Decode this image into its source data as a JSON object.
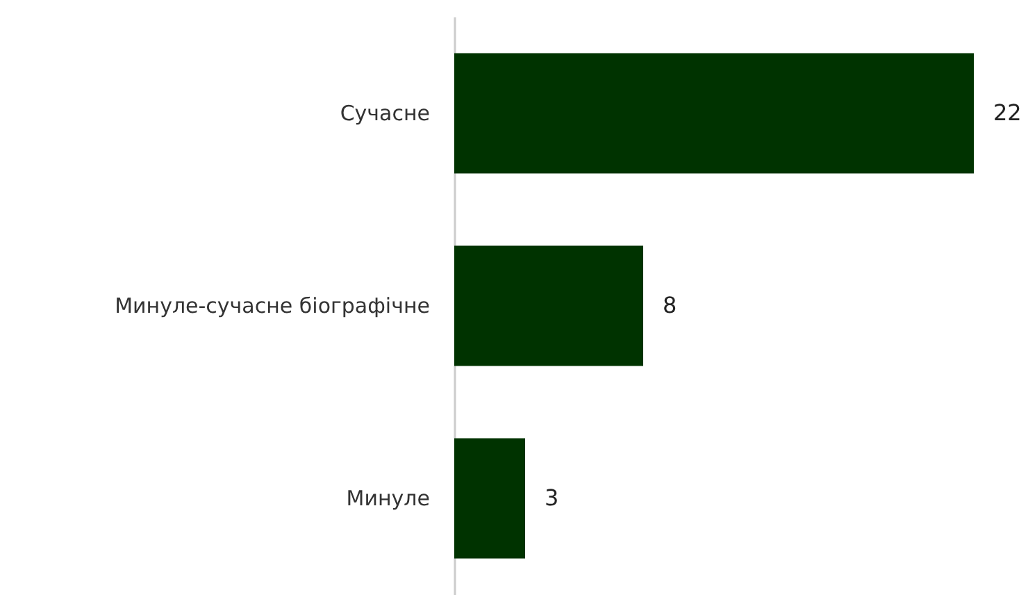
{
  "chart_data": {
    "type": "bar",
    "orientation": "horizontal",
    "categories": [
      "Сучасне",
      "Минуле-сучасне біографічне",
      "Минуле"
    ],
    "values": [
      22,
      8,
      3
    ],
    "color": "#003300",
    "data_labels": true
  }
}
